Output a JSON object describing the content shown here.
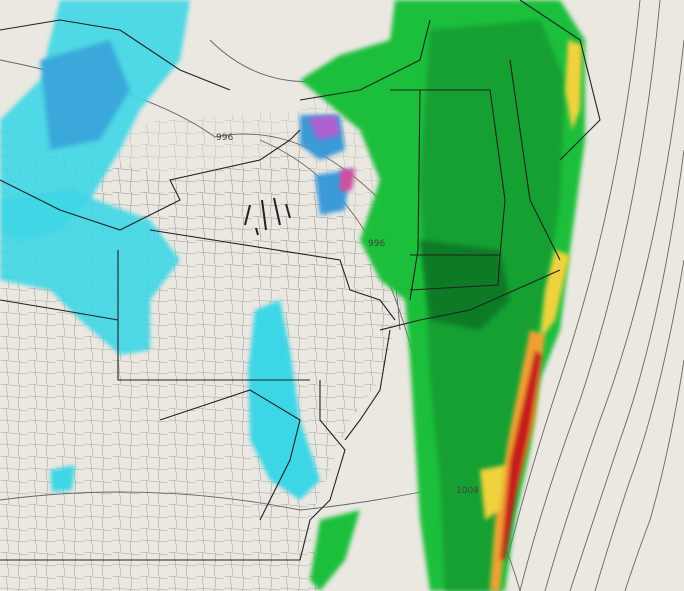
{
  "map": {
    "isobar_labels": [
      "996",
      "996",
      "1004"
    ],
    "colors": {
      "background": "#ebe8e2",
      "rain_light": "#1fbf3a",
      "rain_moderate": "#0f8a2a",
      "rain_heavy": "#f0d23c",
      "rain_intense": "#e07020",
      "rain_extreme": "#c81e1e",
      "snow_light": "#3dd6e6",
      "snow_moderate": "#3a9ad8",
      "mix": "#b060d0",
      "borders": "#222222",
      "counties": "#9a9a9a",
      "isobars": "#555555"
    }
  }
}
